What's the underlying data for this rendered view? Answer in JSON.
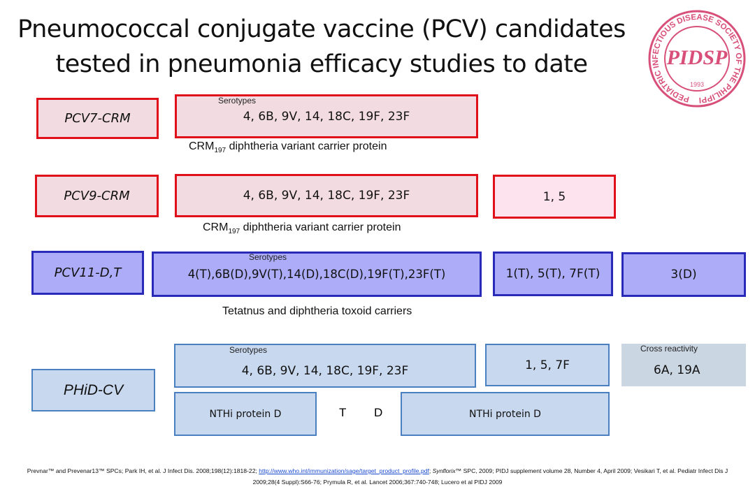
{
  "title": {
    "line1": "Pneumococcal conjugate vaccine (PCV) candidates",
    "line2": "tested in pneumonia efficacy studies to date"
  },
  "logo": {
    "ring": "PEDIATRIC INFECTIOUS DISEASE SOCIETY OF THE PHILIPPINES",
    "initials": "PIDSP",
    "year": "1993"
  },
  "rows": [
    {
      "label": "PCV7-CRM",
      "small": "Serotypes",
      "serotypes": "4, 6B, 9V, 14, 18C, 19F, 23F",
      "carrier": {
        "main": "CRM",
        "sub": "197",
        "rest": " diphtheria variant carrier protein"
      }
    },
    {
      "label": "PCV9-CRM",
      "serotypes": "4, 6B, 9V, 14, 18C, 19F, 23F",
      "extra": "1, 5",
      "carrier": {
        "main": "CRM",
        "sub": "197",
        "rest": " diphtheria variant carrier protein"
      }
    },
    {
      "label": "PCV11-D,T",
      "small": "Serotypes",
      "serotypes": "4(T),6B(D),9V(T),14(D),18C(D),19F(T),23F(T)",
      "extra": "1(T), 5(T), 7F(T)",
      "extra2": "3(D)",
      "carrier": "Tetatnus and diphtheria toxoid carriers"
    },
    {
      "label": "PHiD-CV",
      "small": "Serotypes",
      "serotypes": "4, 6B, 9V, 14, 18C, 19F, 23F",
      "extra": "1, 5, 7F",
      "cross": {
        "small": "Cross reactivity",
        "text": "6A, 19A"
      },
      "protein1": "NTHi protein D",
      "t": "T",
      "d": "D",
      "protein2": "NTHi protein D"
    }
  ],
  "footer": {
    "part1": "Prevnar™ and Prevenar13™ SPCs; Park IH, et al. J Infect Dis. 2008;198(12):1818-22; ",
    "link": "http://www.who.int/immunization/sage/target_product_profile.pdf",
    "part2": "; ",
    "italic": "Synflorix™",
    "part3": " SPC, 2009; PIDJ supplement volume 28, Number 4, April 2009; Vesikari T, et al. Pediatr Infect Dis J 2009;28(4 Suppl):S66-76; Prymula R, et al. Lancet 2006;367:740-748; Lucero et al PIDJ 2009"
  }
}
